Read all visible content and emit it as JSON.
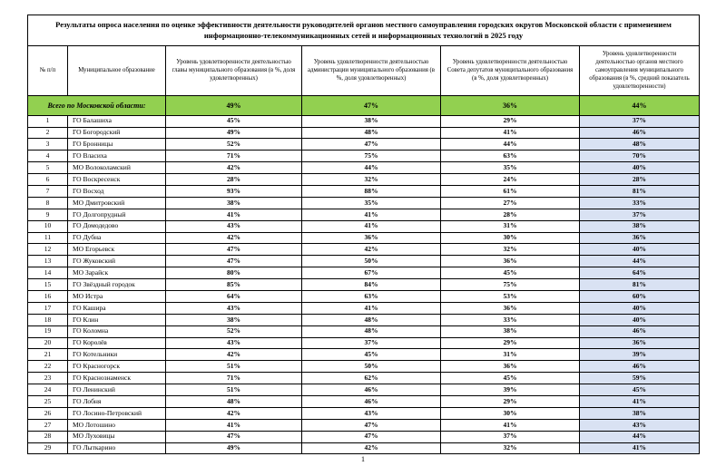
{
  "colors": {
    "total_row_bg": "#92D050",
    "avg_column_bg": "#D9E2F3",
    "border": "#000000"
  },
  "page": {
    "number": "1"
  },
  "table": {
    "title": "Результаты опроса населения по оценке эффективности деятельности руководителей органов местного самоуправления городских округов Московской области с применением информационно-телекоммуникационных сетей и информационных технологий в 2025 году",
    "columns": [
      "№ п/п",
      "Муниципальное образование",
      "Уровень удовлетворенности деятельностью главы муниципального образования (в %, доля удовлетворенных)",
      "Уровень удовлетворенности деятельностью администрации муниципального образования (в %, доля удовлетворенных)",
      "Уровень удовлетворенности деятельностью Совета депутатов муниципального образования (в %, доля удовлетворенных)",
      "Уровень удовлетворенности деятельностью органов местного самоуправления муниципального образования (в %, средний показатель удовлетворенности)"
    ],
    "total_row": {
      "label": "Всего по Московской области:",
      "values": [
        "49%",
        "47%",
        "36%",
        "44%"
      ]
    },
    "rows": [
      {
        "num": "1",
        "name": "ГО Балашиха",
        "values": [
          "45%",
          "38%",
          "29%",
          "37%"
        ]
      },
      {
        "num": "2",
        "name": "ГО Богородский",
        "values": [
          "49%",
          "48%",
          "41%",
          "46%"
        ]
      },
      {
        "num": "3",
        "name": "ГО Бронницы",
        "values": [
          "52%",
          "47%",
          "44%",
          "48%"
        ]
      },
      {
        "num": "4",
        "name": "ГО Власиха",
        "values": [
          "71%",
          "75%",
          "63%",
          "70%"
        ]
      },
      {
        "num": "5",
        "name": "МО Волоколамский",
        "values": [
          "42%",
          "44%",
          "35%",
          "40%"
        ]
      },
      {
        "num": "6",
        "name": "ГО Воскресенск",
        "values": [
          "28%",
          "32%",
          "24%",
          "28%"
        ]
      },
      {
        "num": "7",
        "name": "ГО Восход",
        "values": [
          "93%",
          "88%",
          "61%",
          "81%"
        ]
      },
      {
        "num": "8",
        "name": "МО Дмитровский",
        "values": [
          "38%",
          "35%",
          "27%",
          "33%"
        ]
      },
      {
        "num": "9",
        "name": "ГО Долгопрудный",
        "values": [
          "41%",
          "41%",
          "28%",
          "37%"
        ]
      },
      {
        "num": "10",
        "name": "ГО Домодедово",
        "values": [
          "43%",
          "41%",
          "31%",
          "38%"
        ]
      },
      {
        "num": "11",
        "name": "ГО Дубна",
        "values": [
          "42%",
          "36%",
          "30%",
          "36%"
        ]
      },
      {
        "num": "12",
        "name": "МО Егорьевск",
        "values": [
          "47%",
          "42%",
          "32%",
          "40%"
        ]
      },
      {
        "num": "13",
        "name": "ГО Жуковский",
        "values": [
          "47%",
          "50%",
          "36%",
          "44%"
        ]
      },
      {
        "num": "14",
        "name": "МО Зарайск",
        "values": [
          "80%",
          "67%",
          "45%",
          "64%"
        ]
      },
      {
        "num": "15",
        "name": "ГО Звёздный городок",
        "values": [
          "85%",
          "84%",
          "75%",
          "81%"
        ]
      },
      {
        "num": "16",
        "name": "МО Истра",
        "values": [
          "64%",
          "63%",
          "53%",
          "60%"
        ]
      },
      {
        "num": "17",
        "name": "ГО Кашира",
        "values": [
          "43%",
          "41%",
          "36%",
          "40%"
        ]
      },
      {
        "num": "18",
        "name": "ГО Клин",
        "values": [
          "38%",
          "48%",
          "33%",
          "40%"
        ]
      },
      {
        "num": "19",
        "name": "ГО Коломна",
        "values": [
          "52%",
          "48%",
          "38%",
          "46%"
        ]
      },
      {
        "num": "20",
        "name": "ГО Королёв",
        "values": [
          "43%",
          "37%",
          "29%",
          "36%"
        ]
      },
      {
        "num": "21",
        "name": "ГО Котельники",
        "values": [
          "42%",
          "45%",
          "31%",
          "39%"
        ]
      },
      {
        "num": "22",
        "name": "ГО Красногорск",
        "values": [
          "51%",
          "50%",
          "36%",
          "46%"
        ]
      },
      {
        "num": "23",
        "name": "ГО Краснознаменск",
        "values": [
          "71%",
          "62%",
          "45%",
          "59%"
        ]
      },
      {
        "num": "24",
        "name": "ГО Ленинский",
        "values": [
          "51%",
          "46%",
          "39%",
          "45%"
        ]
      },
      {
        "num": "25",
        "name": "ГО Лобня",
        "values": [
          "48%",
          "46%",
          "29%",
          "41%"
        ]
      },
      {
        "num": "26",
        "name": "ГО Лосино-Петровский",
        "values": [
          "42%",
          "43%",
          "30%",
          "38%"
        ]
      },
      {
        "num": "27",
        "name": "МО Лотошино",
        "values": [
          "41%",
          "47%",
          "41%",
          "43%"
        ]
      },
      {
        "num": "28",
        "name": "МО Луховицы",
        "values": [
          "47%",
          "47%",
          "37%",
          "44%"
        ]
      },
      {
        "num": "29",
        "name": "ГО Лыткарино",
        "values": [
          "49%",
          "42%",
          "32%",
          "41%"
        ]
      }
    ]
  }
}
